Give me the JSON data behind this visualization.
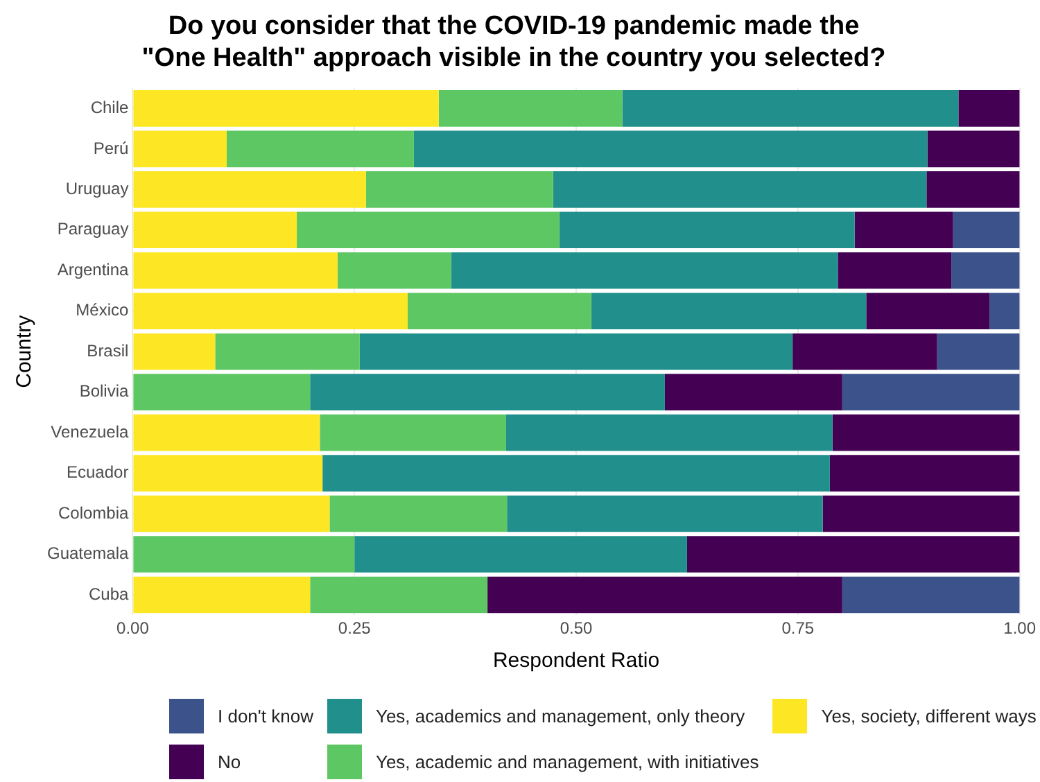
{
  "chart_data": {
    "type": "bar",
    "orientation": "horizontal",
    "stacked": true,
    "title": "Do you consider that the COVID-19 pandemic made the\n\"One Health\" approach visible in the country you selected?",
    "xlabel": "Respondent Ratio",
    "ylabel": "Country",
    "categories": [
      "Chile",
      "Perú",
      "Uruguay",
      "Paraguay",
      "Argentina",
      "México",
      "Brasil",
      "Bolivia",
      "Venezuela",
      "Ecuador",
      "Colombia",
      "Guatemala",
      "Cuba"
    ],
    "series": [
      {
        "name": "Yes, society, different ways",
        "color": "#fde725",
        "values": [
          0.345,
          0.106,
          0.263,
          0.185,
          0.231,
          0.31,
          0.093,
          null,
          0.211,
          0.214,
          0.222,
          null,
          0.2
        ]
      },
      {
        "name": "Yes, academic and management, with initiatives",
        "color": "#5dc863",
        "values": [
          0.207,
          0.211,
          0.211,
          0.296,
          0.128,
          0.207,
          0.163,
          0.2,
          0.21,
          null,
          0.2,
          0.25,
          0.2
        ]
      },
      {
        "name": "Yes, academics and management, only theory",
        "color": "#21908c",
        "values": [
          0.379,
          0.579,
          0.421,
          0.333,
          0.436,
          0.31,
          0.488,
          0.4,
          0.368,
          0.572,
          0.356,
          0.375,
          null
        ]
      },
      {
        "name": "No",
        "color": "#440154",
        "values": [
          0.069,
          0.104,
          0.105,
          0.111,
          0.128,
          0.139,
          0.163,
          0.2,
          0.211,
          0.214,
          0.222,
          0.375,
          0.4
        ]
      },
      {
        "name": "I don't know",
        "color": "#3b528b",
        "values": [
          null,
          null,
          null,
          0.075,
          0.077,
          0.034,
          0.093,
          0.2,
          null,
          null,
          null,
          null,
          0.2
        ]
      }
    ],
    "xlim": [
      0,
      1
    ],
    "xticks": [
      {
        "value": 0,
        "label": "0.00"
      },
      {
        "value": 0.25,
        "label": "0.25"
      },
      {
        "value": 0.5,
        "label": "0.50"
      },
      {
        "value": 0.75,
        "label": "0.75"
      },
      {
        "value": 1,
        "label": "1.00"
      }
    ],
    "grid": true,
    "legend": "bottom"
  }
}
